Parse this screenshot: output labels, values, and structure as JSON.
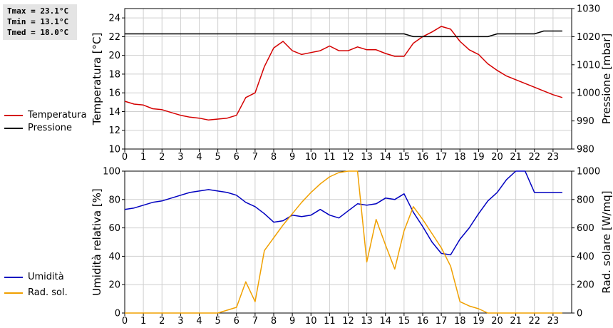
{
  "stats": {
    "tmax": "Tmax = 23.1°C",
    "tmin": "Tmin = 13.1°C",
    "tmed": "Tmed = 18.0°C"
  },
  "legend_top": [
    {
      "label": "Temperatura",
      "color": "#d40000"
    },
    {
      "label": "Pressione",
      "color": "#000000"
    }
  ],
  "legend_bottom": [
    {
      "label": "Umidità",
      "color": "#0000c0"
    },
    {
      "label": "Rad. sol.",
      "color": "#f0a000"
    }
  ],
  "chart_data": [
    {
      "type": "line",
      "x_ticks": [
        "0",
        "1",
        "2",
        "3",
        "4",
        "5",
        "6",
        "7",
        "8",
        "9",
        "10",
        "11",
        "12",
        "13",
        "14",
        "15",
        "16",
        "17",
        "18",
        "19",
        "20",
        "21",
        "22",
        "23"
      ],
      "xlim": [
        0,
        24
      ],
      "grid": true,
      "ylabel": "Temperatura [°C]",
      "ylim": [
        10,
        25
      ],
      "y_ticks": [
        "10",
        "12",
        "14",
        "16",
        "18",
        "20",
        "22",
        "24"
      ],
      "y2label": "Pressione [mbar]",
      "y2lim": [
        980,
        1030
      ],
      "y2_ticks": [
        "980",
        "990",
        "1000",
        "1010",
        "1020",
        "1030"
      ],
      "legend_placement": "left",
      "series": [
        {
          "name": "Temperatura",
          "axis": "left",
          "color": "#d40000",
          "x": [
            0,
            0.5,
            1,
            1.5,
            2,
            2.5,
            3,
            3.5,
            4,
            4.5,
            5,
            5.5,
            6,
            6.5,
            7,
            7.5,
            8,
            8.5,
            9,
            9.5,
            10,
            10.5,
            11,
            11.5,
            12,
            12.5,
            13,
            13.5,
            14,
            14.5,
            15,
            15.5,
            16,
            16.5,
            17,
            17.5,
            18,
            18.5,
            19,
            19.5,
            20,
            20.5,
            21,
            21.5,
            22,
            22.5,
            23,
            23.5
          ],
          "values": [
            15.1,
            14.8,
            14.7,
            14.3,
            14.2,
            13.9,
            13.6,
            13.4,
            13.3,
            13.1,
            13.2,
            13.3,
            13.6,
            15.5,
            16.0,
            18.8,
            20.8,
            21.5,
            20.5,
            20.1,
            20.3,
            20.5,
            21.0,
            20.5,
            20.5,
            20.9,
            20.6,
            20.6,
            20.2,
            19.9,
            19.9,
            21.3,
            22.0,
            22.5,
            23.1,
            22.8,
            21.5,
            20.6,
            20.1,
            19.1,
            18.4,
            17.8,
            17.4,
            17.0,
            16.6,
            16.2,
            15.8,
            15.5
          ]
        },
        {
          "name": "Pressione",
          "axis": "right",
          "color": "#000000",
          "x": [
            0,
            15,
            15.5,
            19.5,
            20,
            22,
            22.5,
            23.5
          ],
          "values": [
            1021,
            1021,
            1020,
            1020,
            1021,
            1021,
            1022,
            1022
          ]
        }
      ]
    },
    {
      "type": "line",
      "x_ticks": [
        "0",
        "1",
        "2",
        "3",
        "4",
        "5",
        "6",
        "7",
        "8",
        "9",
        "10",
        "11",
        "12",
        "13",
        "14",
        "15",
        "16",
        "17",
        "18",
        "19",
        "20",
        "21",
        "22",
        "23"
      ],
      "xlim": [
        0,
        24
      ],
      "grid": true,
      "ylabel": "Umidità relativa [%]",
      "ylim": [
        0,
        100
      ],
      "y_ticks": [
        "0",
        "20",
        "40",
        "60",
        "80",
        "100"
      ],
      "y2label": "Rad. solare [W/mq]",
      "y2lim": [
        0,
        1000
      ],
      "y2_ticks": [
        "0",
        "200",
        "400",
        "600",
        "800",
        "1000"
      ],
      "legend_placement": "left",
      "series": [
        {
          "name": "Umidità",
          "axis": "left",
          "color": "#0000c0",
          "x": [
            0,
            0.5,
            1,
            1.5,
            2,
            2.5,
            3,
            3.5,
            4,
            4.5,
            5,
            5.5,
            6,
            6.5,
            7,
            7.5,
            8,
            8.5,
            9,
            9.5,
            10,
            10.5,
            11,
            11.5,
            12,
            12.5,
            13,
            13.5,
            14,
            14.5,
            15,
            15.5,
            16,
            16.5,
            17,
            17.5,
            18,
            18.5,
            19,
            19.5,
            20,
            20.5,
            21,
            21.5,
            22,
            22.5,
            23,
            23.5
          ],
          "values": [
            73,
            74,
            76,
            78,
            79,
            81,
            83,
            85,
            86,
            87,
            86,
            85,
            83,
            78,
            75,
            70,
            64,
            65,
            69,
            68,
            69,
            73,
            69,
            67,
            72,
            77,
            76,
            77,
            81,
            80,
            84,
            71,
            61,
            50,
            42,
            41,
            52,
            60,
            70,
            79,
            85,
            94,
            100,
            100,
            85,
            85,
            85,
            85
          ]
        },
        {
          "name": "Rad. sol.",
          "axis": "right",
          "color": "#f0a000",
          "x": [
            0,
            5,
            6,
            6.5,
            7,
            7.5,
            8,
            8.5,
            9,
            9.5,
            10,
            10.5,
            11,
            11.5,
            12,
            12.5,
            13,
            13.5,
            14,
            14.5,
            15,
            15.5,
            16,
            16.5,
            17,
            17.5,
            18,
            18.5,
            19,
            19.5,
            20,
            21,
            22,
            23,
            23.5
          ],
          "values": [
            0,
            0,
            40,
            220,
            80,
            440,
            530,
            620,
            700,
            780,
            850,
            910,
            960,
            990,
            1000,
            1000,
            360,
            660,
            480,
            310,
            580,
            750,
            660,
            560,
            460,
            330,
            80,
            50,
            30,
            0,
            0,
            0,
            0,
            0,
            0
          ]
        }
      ]
    }
  ]
}
